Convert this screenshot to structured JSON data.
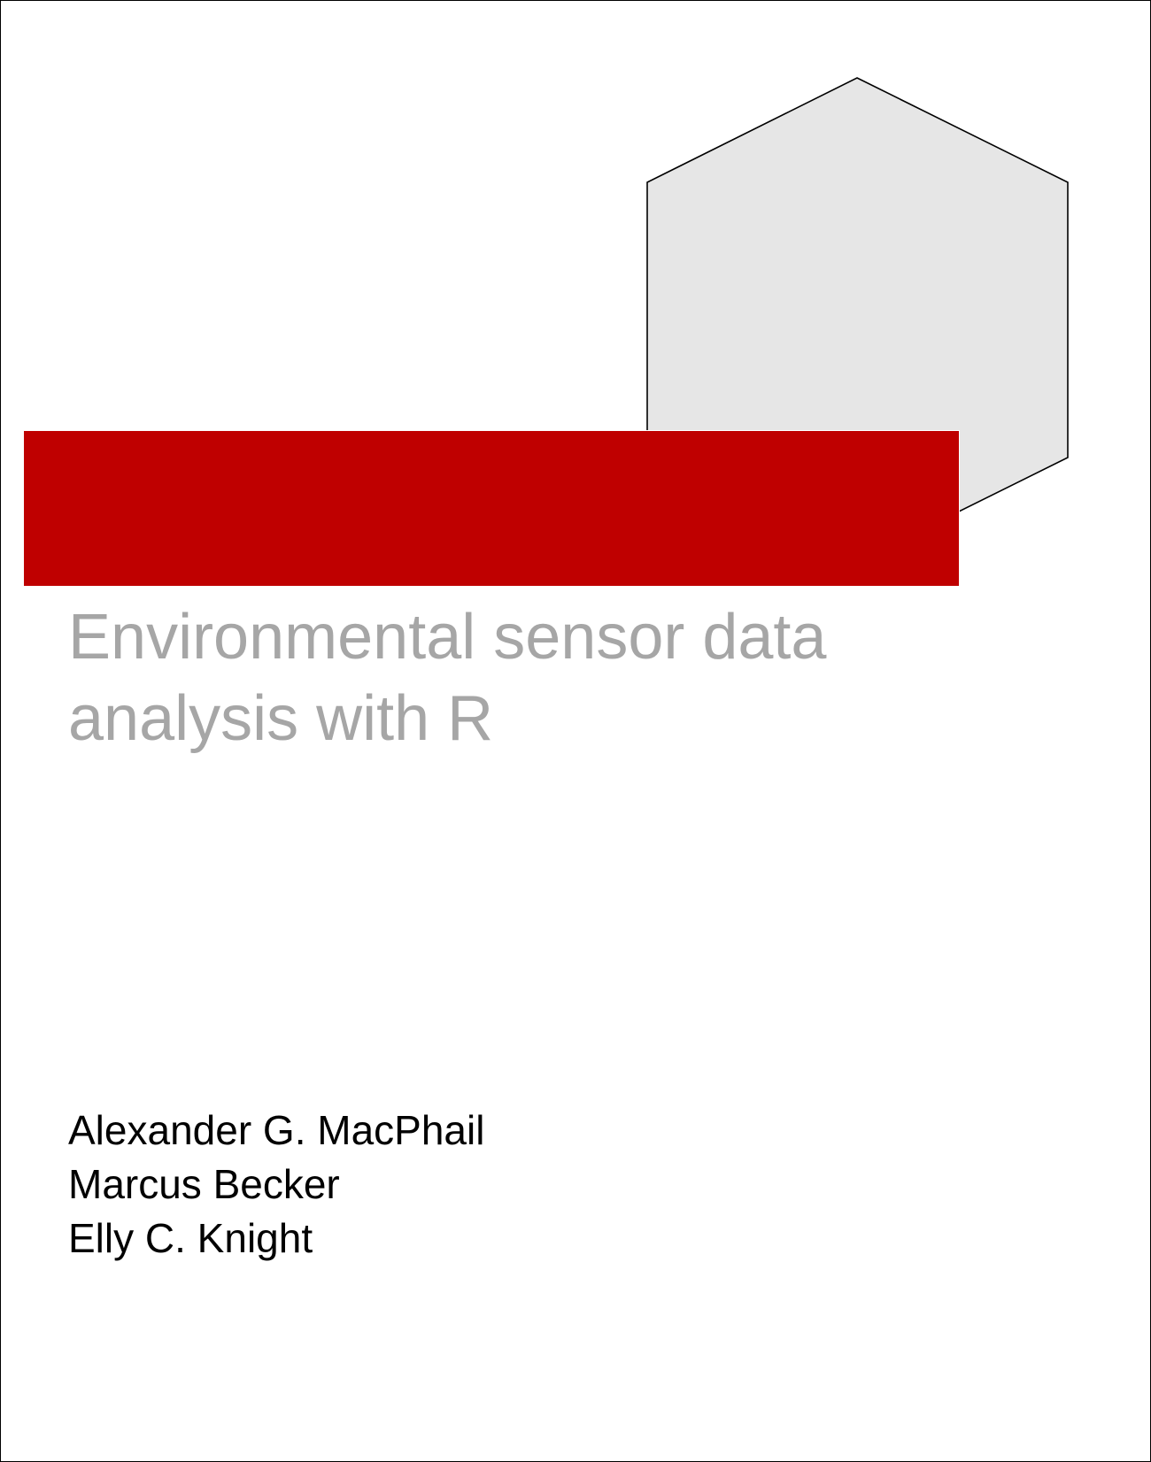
{
  "cover": {
    "title_lines": [
      "Environmental sensor data",
      "analysis with R"
    ],
    "authors": [
      "Alexander G. MacPhail",
      "Marcus Becker",
      "Elly C. Knight"
    ]
  },
  "colors": {
    "banner": "#bf0000",
    "hexagon_fill": "#e6e6e6",
    "hexagon_stroke": "#000000",
    "title_text": "#a6a6a6",
    "author_text": "#000000"
  }
}
